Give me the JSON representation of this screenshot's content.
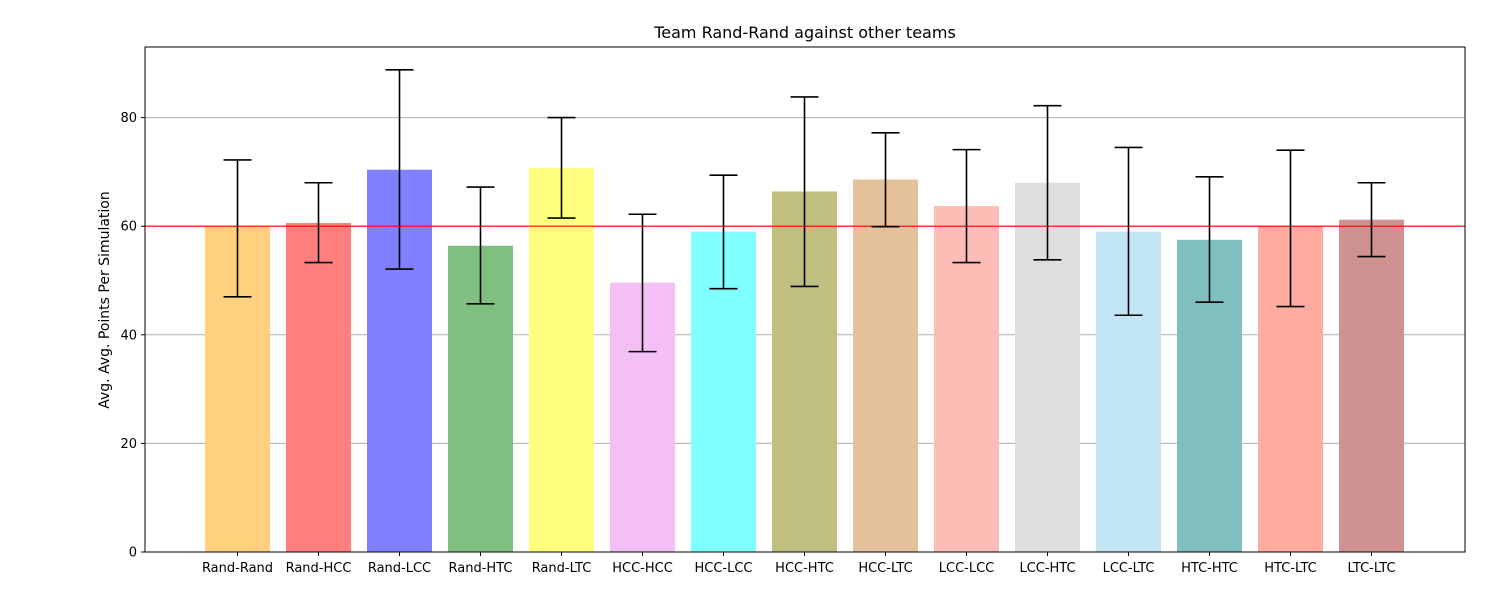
{
  "chart_data": {
    "type": "bar",
    "title": "Team Rand-Rand against other teams",
    "xlabel": "",
    "ylabel": "Avg. Avg. Points Per Simulation",
    "ylim": [
      0,
      93
    ],
    "yticks": [
      0,
      20,
      40,
      60,
      80
    ],
    "grid": "y",
    "categories": [
      "Rand-Rand",
      "Rand-HCC",
      "Rand-LCC",
      "Rand-HTC",
      "Rand-LTC",
      "HCC-HCC",
      "HCC-LCC",
      "HCC-HTC",
      "HCC-LTC",
      "LCC-LCC",
      "LCC-HTC",
      "LCC-LTC",
      "HTC-HTC",
      "HTC-LTC",
      "LTC-LTC"
    ],
    "values": [
      60.0,
      60.6,
      70.4,
      56.4,
      70.7,
      49.6,
      59.0,
      66.4,
      68.6,
      63.7,
      68.0,
      59.0,
      57.5,
      60.0,
      61.2
    ],
    "error_low": [
      47.0,
      53.3,
      52.1,
      45.7,
      61.5,
      36.9,
      48.5,
      48.9,
      59.9,
      53.3,
      53.8,
      43.6,
      46.0,
      45.2,
      54.4
    ],
    "error_high": [
      72.2,
      68.0,
      88.8,
      67.2,
      80.0,
      62.2,
      69.4,
      83.8,
      77.2,
      74.1,
      82.2,
      74.5,
      69.1,
      74.0,
      68.0
    ],
    "reference_line": 60,
    "colors": [
      "#ffd17f",
      "#ff7f7f",
      "#7f7fff",
      "#7fbf7f",
      "#ffff7f",
      "#f4bff4",
      "#7fffff",
      "#bfbf7f",
      "#e4c19b",
      "#fdbcb6",
      "#dedede",
      "#c1e5f2",
      "#7fbfbf",
      "#feac9f",
      "#d09191"
    ],
    "reference_color": "#ff0000",
    "grid_color": "#b0b0b0"
  }
}
